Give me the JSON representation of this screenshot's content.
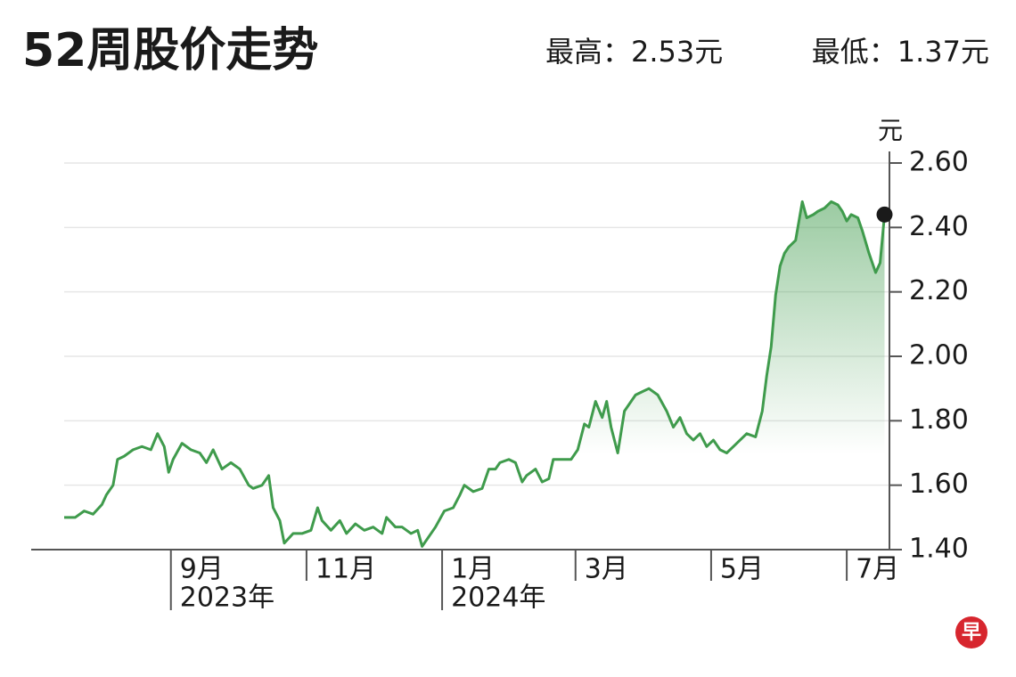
{
  "header": {
    "title": "52周股价走势",
    "high": "最高：2.53元",
    "low": "最低：1.37元"
  },
  "chart_data": {
    "type": "line",
    "y_unit": "元",
    "x": [
      0,
      5,
      9,
      13,
      17,
      19,
      22,
      24,
      27,
      31,
      35,
      39,
      42,
      45,
      47,
      49,
      53,
      57,
      61,
      64,
      67,
      71,
      75,
      79,
      83,
      85,
      89,
      92,
      94,
      97,
      99,
      103,
      107,
      111,
      114,
      116,
      120,
      124,
      127,
      131,
      135,
      139,
      143,
      145,
      149,
      152,
      156,
      159,
      161,
      165,
      167,
      171,
      175,
      178,
      180,
      184,
      188,
      191,
      194,
      196,
      200,
      203,
      206,
      208,
      212,
      215,
      218,
      220,
      224,
      228,
      231,
      234,
      236,
      239,
      242,
      244,
      246,
      249,
      252,
      254,
      257,
      260,
      263,
      267,
      271,
      274,
      277,
      280,
      283,
      286,
      289,
      292,
      295,
      298,
      301,
      304,
      307,
      311,
      314,
      316,
      318,
      320,
      322,
      324,
      326,
      329,
      332,
      334,
      337,
      339,
      342,
      345,
      348,
      350,
      352,
      354,
      357,
      359,
      362,
      365,
      367,
      369
    ],
    "series": [
      {
        "color": "#3f9b4c",
        "values": [
          1.5,
          1.5,
          1.52,
          1.51,
          1.54,
          1.57,
          1.6,
          1.68,
          1.69,
          1.71,
          1.72,
          1.71,
          1.76,
          1.72,
          1.64,
          1.68,
          1.73,
          1.71,
          1.7,
          1.67,
          1.71,
          1.65,
          1.67,
          1.65,
          1.6,
          1.59,
          1.6,
          1.63,
          1.53,
          1.49,
          1.42,
          1.45,
          1.45,
          1.46,
          1.53,
          1.49,
          1.46,
          1.49,
          1.45,
          1.48,
          1.46,
          1.47,
          1.45,
          1.5,
          1.47,
          1.47,
          1.45,
          1.46,
          1.41,
          1.45,
          1.47,
          1.52,
          1.53,
          1.57,
          1.6,
          1.58,
          1.59,
          1.65,
          1.65,
          1.67,
          1.68,
          1.67,
          1.61,
          1.63,
          1.65,
          1.61,
          1.62,
          1.68,
          1.68,
          1.68,
          1.71,
          1.79,
          1.78,
          1.86,
          1.81,
          1.86,
          1.78,
          1.7,
          1.83,
          1.85,
          1.88,
          1.89,
          1.9,
          1.88,
          1.83,
          1.78,
          1.81,
          1.76,
          1.74,
          1.76,
          1.72,
          1.74,
          1.71,
          1.7,
          1.72,
          1.74,
          1.76,
          1.75,
          1.83,
          1.94,
          2.03,
          2.19,
          2.28,
          2.32,
          2.34,
          2.36,
          2.48,
          2.43,
          2.44,
          2.45,
          2.46,
          2.48,
          2.47,
          2.45,
          2.42,
          2.44,
          2.43,
          2.39,
          2.32,
          2.26,
          2.29,
          2.44
        ]
      }
    ],
    "xlim": [
      0,
      370
    ],
    "xticks": [
      {
        "value": 48,
        "label": "9月"
      },
      {
        "value": 109,
        "label": "11月"
      },
      {
        "value": 170,
        "label": "1月"
      },
      {
        "value": 230,
        "label": "3月"
      },
      {
        "value": 291,
        "label": "5月"
      },
      {
        "value": 352,
        "label": "7月"
      }
    ],
    "xtick_years": [
      {
        "value": 48,
        "label": "2023年"
      },
      {
        "value": 170,
        "label": "2024年"
      }
    ],
    "ylim": [
      1.4,
      2.6
    ],
    "yticks": [
      {
        "value": 1.4,
        "label": "1.40"
      },
      {
        "value": 1.6,
        "label": "1.60"
      },
      {
        "value": 1.8,
        "label": "1.80"
      },
      {
        "value": 2.0,
        "label": "2.00"
      },
      {
        "value": 2.2,
        "label": "2.20"
      },
      {
        "value": 2.4,
        "label": "2.40"
      },
      {
        "value": 2.6,
        "label": "2.60"
      }
    ],
    "grid": true,
    "end_marker_color": "#1a1a1a"
  },
  "logo": "早"
}
